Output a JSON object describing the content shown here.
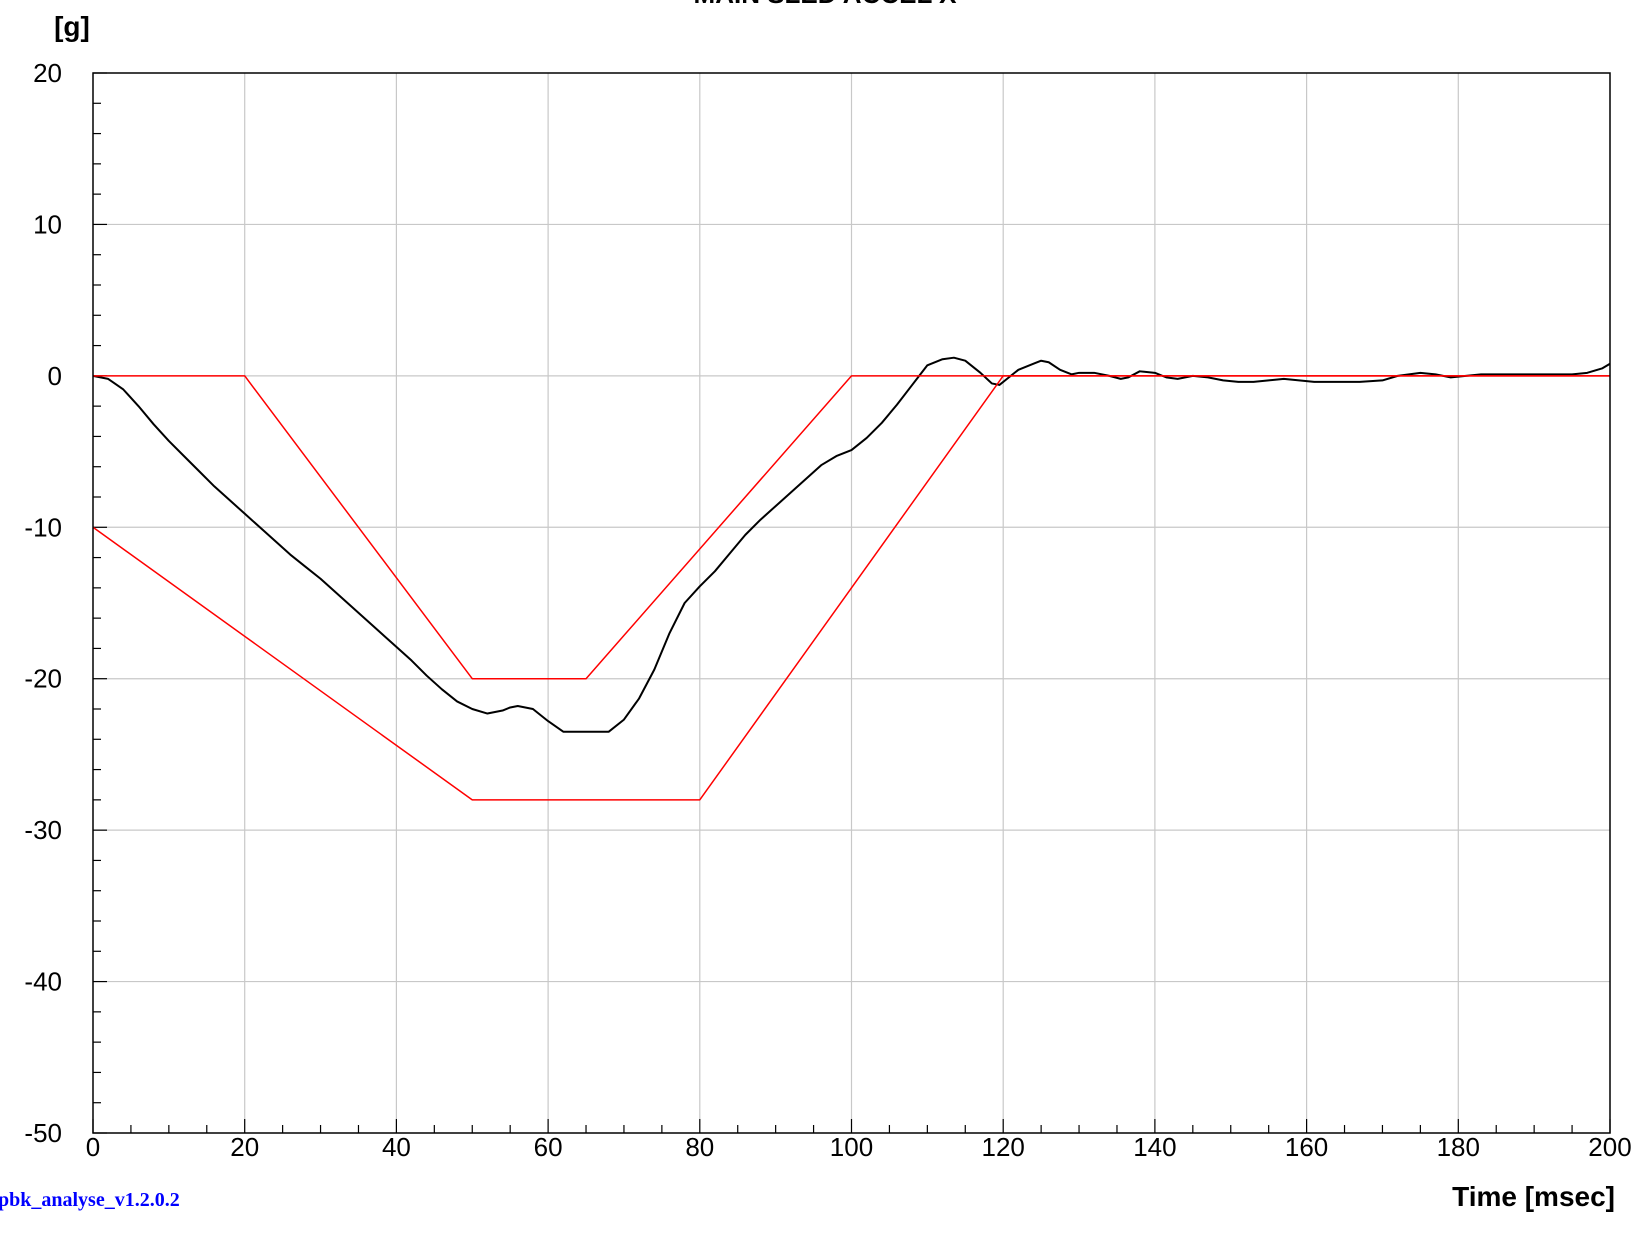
{
  "chart_data": {
    "type": "line",
    "title": "MAIN SLED ACCEL  X",
    "ylabel": "[g]",
    "xlabel": "Time [msec]",
    "xlim": [
      0,
      200
    ],
    "ylim": [
      -50,
      20
    ],
    "x_ticks": [
      0,
      20,
      40,
      60,
      80,
      100,
      120,
      140,
      160,
      180,
      200
    ],
    "y_ticks": [
      20,
      10,
      0,
      -10,
      -20,
      -30,
      -40,
      -50
    ],
    "grid": true,
    "series": [
      {
        "color": "#000000",
        "points": [
          [
            0,
            0
          ],
          [
            2,
            -0.2
          ],
          [
            4,
            -0.9
          ],
          [
            6,
            -2
          ],
          [
            8,
            -3.2
          ],
          [
            10,
            -4.3
          ],
          [
            12,
            -5.3
          ],
          [
            14,
            -6.3
          ],
          [
            16,
            -7.3
          ],
          [
            18,
            -8.2
          ],
          [
            20,
            -9.1
          ],
          [
            22,
            -10
          ],
          [
            24,
            -10.9
          ],
          [
            26,
            -11.8
          ],
          [
            28,
            -12.6
          ],
          [
            30,
            -13.4
          ],
          [
            32,
            -14.3
          ],
          [
            34,
            -15.2
          ],
          [
            36,
            -16.1
          ],
          [
            38,
            -17
          ],
          [
            40,
            -17.9
          ],
          [
            42,
            -18.8
          ],
          [
            44,
            -19.8
          ],
          [
            46,
            -20.7
          ],
          [
            48,
            -21.5
          ],
          [
            50,
            -22
          ],
          [
            52,
            -22.3
          ],
          [
            54,
            -22.1
          ],
          [
            55,
            -21.9
          ],
          [
            56,
            -21.8
          ],
          [
            58,
            -22
          ],
          [
            60,
            -22.8
          ],
          [
            62,
            -23.5
          ],
          [
            64,
            -23.5
          ],
          [
            66,
            -23.5
          ],
          [
            68,
            -23.5
          ],
          [
            70,
            -22.7
          ],
          [
            72,
            -21.3
          ],
          [
            74,
            -19.4
          ],
          [
            76,
            -17
          ],
          [
            78,
            -15
          ],
          [
            80,
            -13.9
          ],
          [
            82,
            -12.9
          ],
          [
            84,
            -11.7
          ],
          [
            86,
            -10.5
          ],
          [
            88,
            -9.5
          ],
          [
            90,
            -8.6
          ],
          [
            92,
            -7.7
          ],
          [
            94,
            -6.8
          ],
          [
            96,
            -5.9
          ],
          [
            98,
            -5.3
          ],
          [
            100,
            -4.9
          ],
          [
            102,
            -4.1
          ],
          [
            104,
            -3.1
          ],
          [
            106,
            -1.9
          ],
          [
            108,
            -0.6
          ],
          [
            110,
            0.7
          ],
          [
            112,
            1.1
          ],
          [
            113.5,
            1.2
          ],
          [
            115,
            1
          ],
          [
            117,
            0.2
          ],
          [
            118.5,
            -0.5
          ],
          [
            119.5,
            -0.6
          ],
          [
            120.5,
            -0.2
          ],
          [
            122,
            0.4
          ],
          [
            124,
            0.8
          ],
          [
            125,
            1
          ],
          [
            126,
            0.9
          ],
          [
            127.5,
            0.4
          ],
          [
            129,
            0.1
          ],
          [
            130,
            0.2
          ],
          [
            132,
            0.2
          ],
          [
            134,
            0
          ],
          [
            135.5,
            -0.2
          ],
          [
            136.5,
            -0.1
          ],
          [
            138,
            0.3
          ],
          [
            140,
            0.2
          ],
          [
            141.5,
            -0.1
          ],
          [
            143,
            -0.2
          ],
          [
            145,
            0
          ],
          [
            147,
            -0.1
          ],
          [
            149,
            -0.3
          ],
          [
            151,
            -0.4
          ],
          [
            153,
            -0.4
          ],
          [
            155,
            -0.3
          ],
          [
            157,
            -0.2
          ],
          [
            159,
            -0.3
          ],
          [
            161,
            -0.4
          ],
          [
            164,
            -0.4
          ],
          [
            167,
            -0.4
          ],
          [
            170,
            -0.3
          ],
          [
            172,
            0
          ],
          [
            175,
            0.2
          ],
          [
            177,
            0.1
          ],
          [
            179,
            -0.1
          ],
          [
            181,
            0
          ],
          [
            183,
            0.1
          ],
          [
            186,
            0.1
          ],
          [
            189,
            0.1
          ],
          [
            192,
            0.1
          ],
          [
            195,
            0.1
          ],
          [
            197,
            0.2
          ],
          [
            199,
            0.5
          ],
          [
            200,
            0.8
          ]
        ]
      },
      {
        "color": "#ff0000",
        "points": [
          [
            0,
            0
          ],
          [
            20,
            0
          ],
          [
            50,
            -20
          ],
          [
            65,
            -20
          ],
          [
            100,
            0
          ],
          [
            200,
            0
          ]
        ]
      },
      {
        "color": "#ff0000",
        "points": [
          [
            0,
            -10
          ],
          [
            50,
            -28
          ],
          [
            80,
            -28
          ],
          [
            120,
            0
          ],
          [
            200,
            0
          ]
        ]
      }
    ]
  },
  "watermark": "pbk_analyse_v1.2.0.2"
}
